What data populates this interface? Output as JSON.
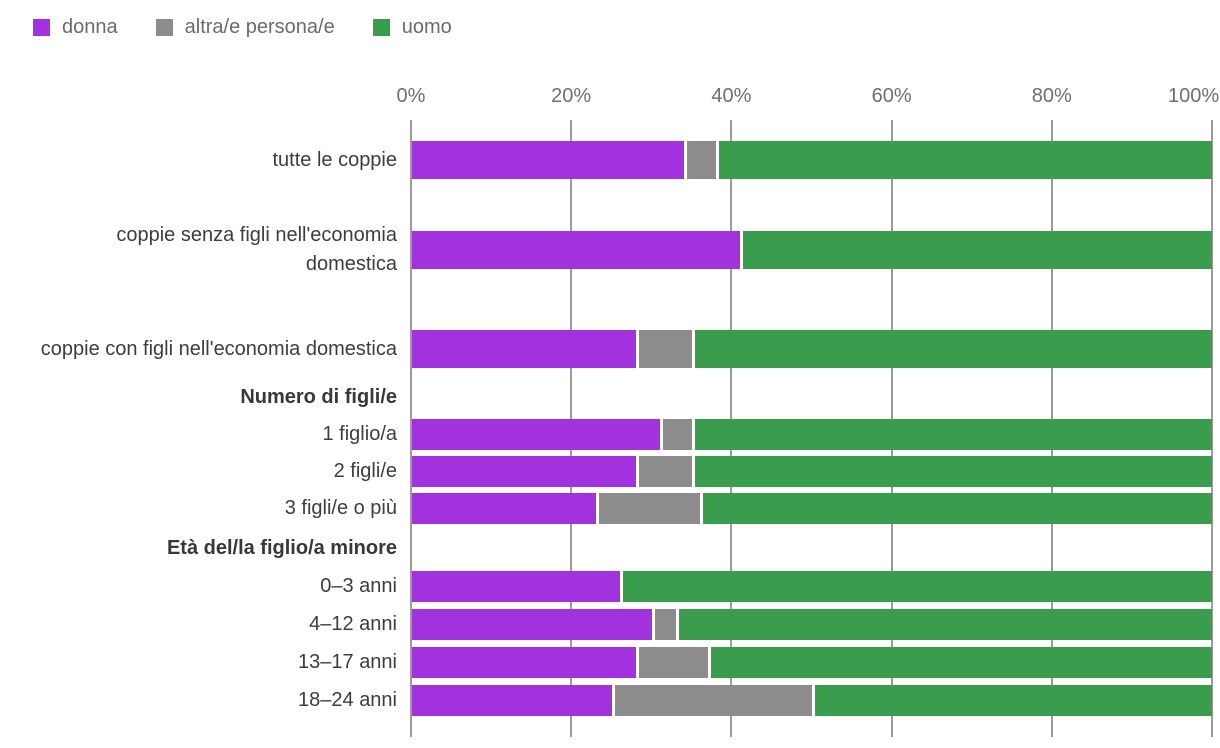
{
  "legend": {
    "items": [
      {
        "label": "donna",
        "color": "#a232dd"
      },
      {
        "label": "altra/e persona/e",
        "color": "#8c8c8c"
      },
      {
        "label": "uomo",
        "color": "#3a9d4e"
      }
    ]
  },
  "colors": {
    "donna": "#a232dd",
    "altra": "#8c8c8c",
    "uomo": "#3a9d4e",
    "gridline": "#9c9c9c"
  },
  "chart_data": {
    "type": "bar",
    "stacked": true,
    "orientation": "horizontal",
    "unit": "%",
    "xlim": [
      0,
      100
    ],
    "x_ticks": [
      0,
      20,
      40,
      60,
      80,
      100
    ],
    "x_tick_labels": [
      "0%",
      "20%",
      "40%",
      "60%",
      "80%",
      "100%"
    ],
    "grid": true,
    "legend_position": "top-left",
    "series_names": [
      "donna",
      "altra/e persona/e",
      "uomo"
    ],
    "rows": [
      {
        "kind": "bar",
        "label": "tutte le coppie",
        "values": [
          34,
          4,
          62
        ]
      },
      {
        "kind": "bar",
        "label": "coppie senza figli nell'economia domestica",
        "values": [
          41,
          0,
          59
        ]
      },
      {
        "kind": "bar",
        "label": "coppie con figli nell'economia domestica",
        "values": [
          28,
          7,
          65
        ]
      },
      {
        "kind": "header",
        "label": "Numero di figli/e"
      },
      {
        "kind": "bar",
        "label": "1 figlio/a",
        "values": [
          31,
          4,
          65
        ]
      },
      {
        "kind": "bar",
        "label": "2 figli/e",
        "values": [
          28,
          7,
          65
        ]
      },
      {
        "kind": "bar",
        "label": "3 figli/e o più",
        "values": [
          23,
          13,
          64
        ]
      },
      {
        "kind": "header",
        "label": "Età del/la figlio/a minore"
      },
      {
        "kind": "bar",
        "label": "0–3 anni",
        "values": [
          26,
          0,
          74
        ]
      },
      {
        "kind": "bar",
        "label": "4–12 anni",
        "values": [
          30,
          3,
          67
        ]
      },
      {
        "kind": "bar",
        "label": "13–17 anni",
        "values": [
          28,
          9,
          63
        ]
      },
      {
        "kind": "bar",
        "label": "18–24 anni",
        "values": [
          25,
          25,
          50
        ]
      }
    ]
  }
}
